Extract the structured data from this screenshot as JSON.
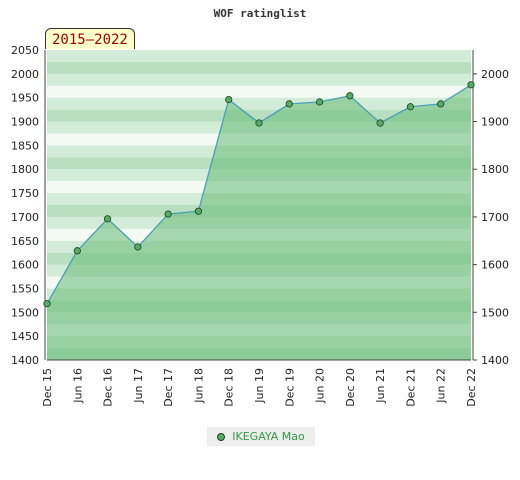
{
  "chart_data": {
    "type": "area",
    "title": "WOF ratinglist",
    "period_badge": "2015–2022",
    "x": [
      "Dec 15",
      "Jun 16",
      "Dec 16",
      "Jun 17",
      "Dec 17",
      "Jun 18",
      "Dec 18",
      "Jun 19",
      "Dec 19",
      "Jun 20",
      "Dec 20",
      "Jun 21",
      "Dec 21",
      "Jun 22",
      "Dec 22"
    ],
    "series": [
      {
        "name": "IKEGAYA Mao",
        "values": [
          1518,
          1629,
          1696,
          1637,
          1706,
          1712,
          1946,
          1897,
          1937,
          1941,
          1954,
          1897,
          1931,
          1937,
          1977
        ]
      }
    ],
    "ylim": [
      1400,
      2050
    ],
    "left_ticks": [
      1400,
      1450,
      1500,
      1550,
      1600,
      1650,
      1700,
      1750,
      1800,
      1850,
      1900,
      1950,
      2000,
      2050
    ],
    "right_ticks": [
      1400,
      1500,
      1600,
      1700,
      1800,
      1900,
      2000
    ],
    "xlabel": "",
    "ylabel": "",
    "legend_position": "bottom-center",
    "colors": {
      "line": "#4a9fb5",
      "point": "#55aa66",
      "fill": "#66bb77",
      "band_light": "#f3faf4",
      "band_mid": "#d3ecd8",
      "band_dark": "#b8dfc0"
    }
  }
}
